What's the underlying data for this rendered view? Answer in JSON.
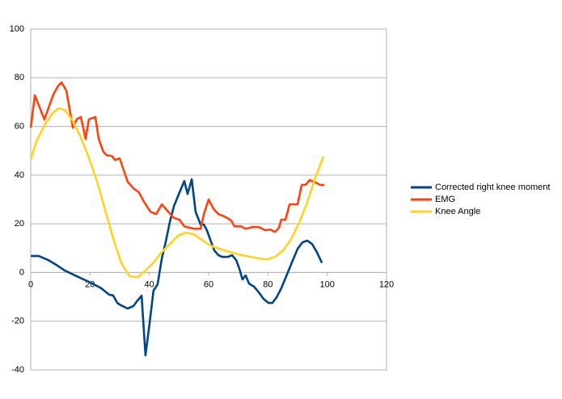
{
  "chart_data": {
    "type": "line",
    "xlim": [
      0,
      120
    ],
    "xticks": [
      0,
      20,
      40,
      60,
      80,
      100,
      120
    ],
    "ylim": [
      -40,
      100
    ],
    "yticks": [
      -40,
      -20,
      0,
      20,
      40,
      60,
      80,
      100
    ],
    "grid": true,
    "legend": "right",
    "series": [
      {
        "name": "Corrected right knee moment",
        "color": "#004586",
        "x": [
          0,
          2.7,
          6.0,
          8.7,
          11.5,
          15.5,
          19.6,
          23.7,
          26.5,
          27.8,
          29.2,
          30.5,
          32.7,
          34.6,
          36.0,
          37.4,
          38.7,
          40.1,
          41.4,
          42.8,
          44.2,
          45.5,
          46.9,
          48.3,
          50.2,
          51.8,
          52.9,
          54.3,
          55.6,
          57.3,
          58.4,
          59.5,
          60.5,
          61.9,
          63.3,
          64.6,
          66.5,
          67.9,
          69.3,
          70.4,
          71.4,
          72.5,
          73.6,
          75.3,
          76.9,
          78.5,
          80.2,
          81.5,
          82.9,
          84.5,
          86.4,
          88.4,
          90.0,
          91.6,
          93.3,
          94.9,
          96.5,
          98.2
        ],
        "values": [
          6.8,
          6.8,
          5.1,
          3.1,
          0.8,
          -1.5,
          -3.8,
          -6.4,
          -9.1,
          -9.4,
          -12.5,
          -13.5,
          -14.8,
          -13.8,
          -11.5,
          -9.5,
          -34.0,
          -20.8,
          -7.5,
          -4.8,
          5.8,
          12.4,
          20.7,
          27.3,
          33.0,
          37.6,
          32.3,
          38.3,
          25.0,
          19.7,
          19.7,
          17.1,
          13.7,
          9.1,
          7.1,
          6.4,
          6.4,
          7.1,
          5.1,
          1.5,
          -2.8,
          -1.2,
          -4.5,
          -5.8,
          -8.1,
          -10.8,
          -12.5,
          -12.5,
          -10.2,
          -6.5,
          -0.9,
          5.1,
          9.7,
          12.4,
          13.1,
          11.7,
          8.4,
          4.0
        ]
      },
      {
        "name": "EMG",
        "color": "#ff420e",
        "x": [
          0,
          1.4,
          4.6,
          7.6,
          9.3,
          10.4,
          12.0,
          14.2,
          15.5,
          16.9,
          18.5,
          19.6,
          21.8,
          22.9,
          24.5,
          25.6,
          27.3,
          28.4,
          30.0,
          32.7,
          34.6,
          36.5,
          38.2,
          40.4,
          42.3,
          44.2,
          46.4,
          48.3,
          50.2,
          51.8,
          53.7,
          55.1,
          57.3,
          58.4,
          60.0,
          61.6,
          63.3,
          65.4,
          67.6,
          68.7,
          70.9,
          72.5,
          74.7,
          76.9,
          79.1,
          80.7,
          82.4,
          83.7,
          84.5,
          85.9,
          87.3,
          90.0,
          91.4,
          92.7,
          94.1,
          96.0,
          97.6,
          99.0
        ],
        "values": [
          59.5,
          72.8,
          62.9,
          73.1,
          76.8,
          78.1,
          74.8,
          59.5,
          62.9,
          63.9,
          54.9,
          62.9,
          63.9,
          54.9,
          49.6,
          48.2,
          47.9,
          46.3,
          46.9,
          37.3,
          34.6,
          33.0,
          29.0,
          25.0,
          24.0,
          28.0,
          25.0,
          22.4,
          21.7,
          19.0,
          18.4,
          18.0,
          18.0,
          24.0,
          30.0,
          26.3,
          24.0,
          23.0,
          21.4,
          19.0,
          19.0,
          18.0,
          18.7,
          18.7,
          17.4,
          17.7,
          16.7,
          18.4,
          21.7,
          21.7,
          28.0,
          28.0,
          36.0,
          36.0,
          38.0,
          37.0,
          36.0,
          36.0
        ]
      },
      {
        "name": "Knee Angle",
        "color": "#ffd320",
        "x": [
          0,
          1.9,
          4.6,
          7.4,
          9.3,
          11.5,
          14.2,
          16.9,
          19.6,
          22.4,
          25.1,
          27.8,
          30.5,
          33.3,
          36.0,
          38.7,
          41.4,
          44.2,
          46.9,
          49.6,
          52.4,
          55.1,
          57.8,
          60.5,
          66.0,
          71.4,
          76.9,
          79.6,
          82.4,
          85.1,
          87.8,
          90.5,
          93.3,
          96.0,
          98.7
        ],
        "values": [
          46.6,
          53.9,
          60.5,
          65.5,
          67.5,
          66.8,
          62.2,
          55.5,
          47.2,
          37.3,
          25.7,
          14.1,
          4.1,
          -1.5,
          -1.9,
          0.8,
          4.1,
          8.4,
          11.7,
          15.1,
          16.4,
          15.7,
          13.4,
          11.1,
          8.8,
          7.1,
          5.8,
          5.4,
          6.4,
          9.1,
          13.7,
          20.4,
          29.0,
          39.0,
          47.6
        ]
      }
    ]
  }
}
